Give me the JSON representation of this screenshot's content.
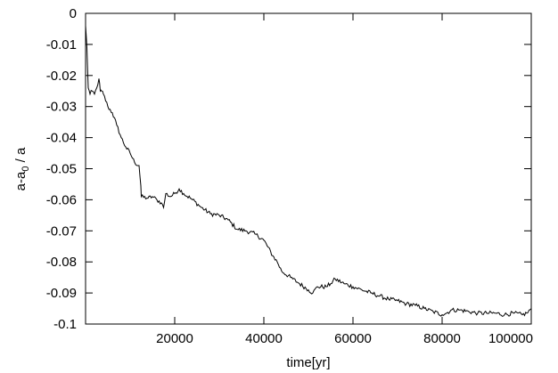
{
  "chart_data": {
    "type": "line",
    "title": "",
    "xlabel": "time[yr]",
    "ylabel": "a-a0 / a",
    "ylabel_parts": {
      "main1": "a-a",
      "sub": "0",
      "main2": " / a"
    },
    "xlim": [
      0,
      100000
    ],
    "ylim": [
      -0.1,
      0
    ],
    "grid": false,
    "xticks": [
      20000,
      40000,
      60000,
      80000,
      100000
    ],
    "yticks": [
      0,
      -0.01,
      -0.02,
      -0.03,
      -0.04,
      -0.05,
      -0.06,
      -0.07,
      -0.08,
      -0.09,
      -0.1
    ],
    "xtick_labels": [
      "20000",
      "40000",
      "60000",
      "80000",
      "100000"
    ],
    "ytick_labels": [
      "0",
      "-0.01",
      "-0.02",
      "-0.03",
      "-0.04",
      "-0.05",
      "-0.06",
      "-0.07",
      "-0.08",
      "-0.09",
      "-0.1"
    ],
    "series": [
      {
        "x": [
          0,
          300,
          600,
          1000,
          1500,
          2000,
          2500,
          3000,
          3300,
          3600,
          4000,
          5000,
          6000,
          7000,
          8000,
          9000,
          10000,
          11000,
          12000,
          12400,
          12500,
          14000,
          15000,
          16000,
          17000,
          17500,
          18000,
          19000,
          20000,
          21000,
          22000,
          24000,
          26000,
          28000,
          30000,
          32000,
          34000,
          36000,
          38000,
          40000,
          42000,
          43000,
          44000,
          46000,
          48000,
          50000,
          51000,
          52000,
          54000,
          55000,
          56000,
          58000,
          60000,
          62000,
          64000,
          66000,
          68000,
          70000,
          72000,
          74000,
          76000,
          78000,
          80000,
          81000,
          82000,
          84000,
          86000,
          88000,
          90000,
          92000,
          94000,
          96000,
          98000,
          99000,
          100000
        ],
        "y": [
          -0.004,
          -0.011,
          -0.024,
          -0.026,
          -0.025,
          -0.026,
          -0.024,
          -0.021,
          -0.025,
          -0.025,
          -0.026,
          -0.03,
          -0.032,
          -0.036,
          -0.04,
          -0.043,
          -0.045,
          -0.048,
          -0.049,
          -0.0555,
          -0.059,
          -0.0595,
          -0.059,
          -0.06,
          -0.061,
          -0.0625,
          -0.058,
          -0.059,
          -0.058,
          -0.0565,
          -0.058,
          -0.06,
          -0.0625,
          -0.0645,
          -0.065,
          -0.0665,
          -0.0695,
          -0.07,
          -0.071,
          -0.073,
          -0.078,
          -0.08,
          -0.083,
          -0.085,
          -0.087,
          -0.089,
          -0.09,
          -0.088,
          -0.088,
          -0.087,
          -0.0855,
          -0.087,
          -0.088,
          -0.089,
          -0.09,
          -0.091,
          -0.092,
          -0.0925,
          -0.0935,
          -0.094,
          -0.095,
          -0.096,
          -0.097,
          -0.0965,
          -0.0955,
          -0.0955,
          -0.096,
          -0.0965,
          -0.0965,
          -0.0965,
          -0.097,
          -0.0965,
          -0.097,
          -0.0965,
          -0.095
        ]
      }
    ]
  }
}
